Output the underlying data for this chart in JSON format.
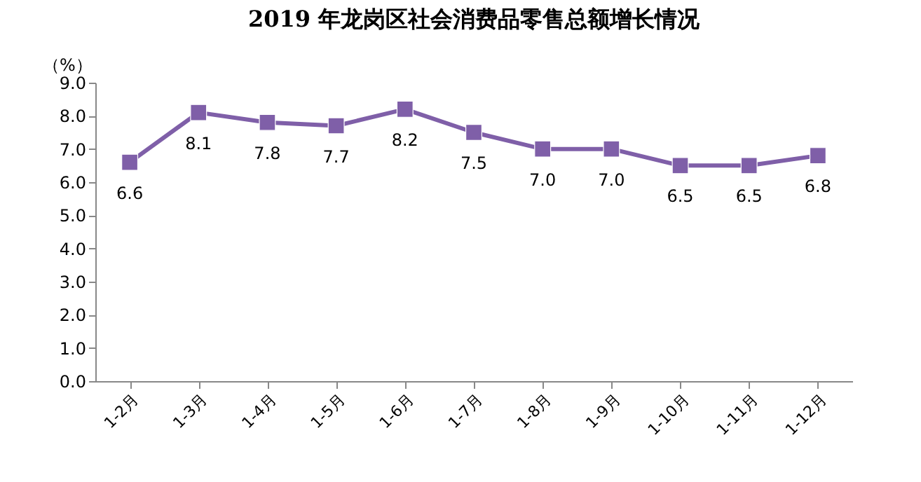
{
  "chart_data": {
    "type": "line",
    "title": "2019 年龙岗区社会消费品零售总额增长情况",
    "ylabel": "（%）",
    "categories": [
      "1-2月",
      "1-3月",
      "1-4月",
      "1-5月",
      "1-6月",
      "1-7月",
      "1-8月",
      "1-9月",
      "1-10月",
      "1-11月",
      "1-12月"
    ],
    "series": [
      {
        "color": "#7f5fa8",
        "values": [
          6.6,
          8.1,
          7.8,
          7.7,
          8.2,
          7.5,
          7.0,
          7.0,
          6.5,
          6.5,
          6.8
        ]
      }
    ],
    "ylim": [
      0,
      9
    ],
    "yticks": [
      {
        "value": 0,
        "label": "0.0"
      },
      {
        "value": 1,
        "label": "1.0"
      },
      {
        "value": 2,
        "label": "2.0"
      },
      {
        "value": 3,
        "label": "3.0"
      },
      {
        "value": 4,
        "label": "4.0"
      },
      {
        "value": 5,
        "label": "5.0"
      },
      {
        "value": 6,
        "label": "6.0"
      },
      {
        "value": 7,
        "label": "7.0"
      },
      {
        "value": 8,
        "label": "8.0"
      },
      {
        "value": 9,
        "label": "9.0"
      }
    ],
    "value_labels": [
      "6.6",
      "8.1",
      "7.8",
      "7.7",
      "8.2",
      "7.5",
      "7.0",
      "7.0",
      "6.5",
      "6.5",
      "6.8"
    ],
    "marker": "square",
    "line_style": "solid",
    "grid": false,
    "legend": false
  }
}
